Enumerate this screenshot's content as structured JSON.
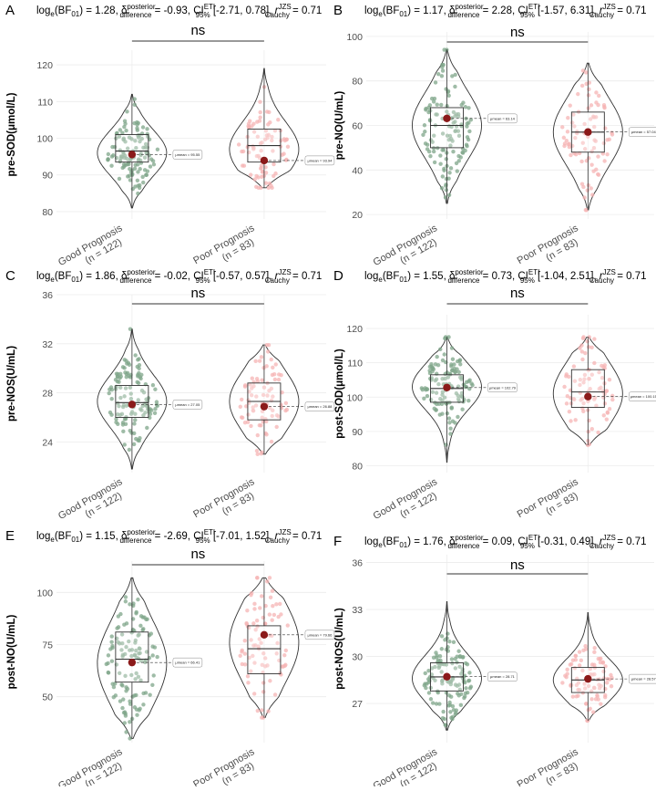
{
  "figure": {
    "colors": {
      "good": "#7fa58a",
      "poor": "#f6b4b4",
      "mean": "#8b1a1a",
      "grid": "#ececec"
    }
  },
  "chart_data": [
    {
      "letter": "A",
      "type": "violin",
      "title_parts": {
        "bf": "1.28",
        "diff": "-0.93",
        "ci": "[-2.71, 0.78]",
        "r": "0.71"
      },
      "ylabel": "pre-SOD(μmol/L)",
      "ylim": [
        78,
        124
      ],
      "yticks": [
        80,
        90,
        100,
        110,
        120
      ],
      "categories": [
        "Good Prognosis",
        "Poor Prognosis"
      ],
      "ns_counts": [
        "(n = 122)",
        "(n = 83)"
      ],
      "ns_label": "ns",
      "groups": [
        {
          "name": "Good Prognosis",
          "n": 122,
          "min": 81,
          "max": 112,
          "q1": 93.5,
          "median": 96.5,
          "q3": 101,
          "mean": 95.55,
          "mean_label": "μmean = 95.55",
          "mode": 96
        },
        {
          "name": "Poor Prognosis",
          "n": 83,
          "min": 86.5,
          "max": 119,
          "q1": 93.5,
          "median": 98,
          "q3": 102.5,
          "mean": 93.94,
          "mean_label": "μmean = 93.94",
          "mode": 97
        }
      ]
    },
    {
      "letter": "B",
      "type": "violin",
      "title_parts": {
        "bf": "1.17",
        "diff": "2.28",
        "ci": "[-1.57, 6.31]",
        "r": "0.71"
      },
      "ylabel": "pre-NO(U/mL)",
      "ylim": [
        18,
        102
      ],
      "yticks": [
        20,
        40,
        60,
        80,
        100
      ],
      "categories": [
        "Good Prognosis",
        "Poor Prognosis"
      ],
      "ns_counts": [
        "(n = 122)",
        "(n = 83)"
      ],
      "ns_label": "ns",
      "groups": [
        {
          "name": "Good Prognosis",
          "n": 122,
          "min": 25,
          "max": 94,
          "q1": 50,
          "median": 60,
          "q3": 68,
          "mean": 63.14,
          "mean_label": "μmean = 63.14",
          "mode": 60
        },
        {
          "name": "Poor Prognosis",
          "n": 83,
          "min": 22,
          "max": 88,
          "q1": 48,
          "median": 57,
          "q3": 66,
          "mean": 57.04,
          "mean_label": "μmean = 57.04",
          "mode": 57
        }
      ]
    },
    {
      "letter": "C",
      "type": "violin",
      "title_parts": {
        "bf": "1.86",
        "diff": "-0.02",
        "ci": "[-0.57, 0.57]",
        "r": "0.71"
      },
      "ylabel": "pre-NOS(U/mL)",
      "ylim": [
        21.5,
        36
      ],
      "yticks": [
        24,
        28,
        32,
        36
      ],
      "categories": [
        "Good Prognosis",
        "Poor Prognosis"
      ],
      "ns_counts": [
        "(n = 122)",
        "(n = 83)"
      ],
      "ns_label": "ns",
      "groups": [
        {
          "name": "Good Prognosis",
          "n": 122,
          "min": 21.8,
          "max": 33.2,
          "q1": 26,
          "median": 27.2,
          "q3": 28.6,
          "mean": 27.05,
          "mean_label": "μmean = 27.05",
          "mode": 27.3
        },
        {
          "name": "Poor Prognosis",
          "n": 83,
          "min": 23,
          "max": 31.9,
          "q1": 25.8,
          "median": 27.3,
          "q3": 28.8,
          "mean": 26.88,
          "mean_label": "μmean = 26.88",
          "mode": 27.3
        }
      ]
    },
    {
      "letter": "D",
      "type": "violin",
      "title_parts": {
        "bf": "1.55",
        "diff": "0.73",
        "ci": "[-1.04, 2.51]",
        "r": "0.71"
      },
      "ylabel": "post-SOD(μmol/L)",
      "ylim": [
        78,
        124
      ],
      "yticks": [
        80,
        90,
        100,
        110,
        120
      ],
      "categories": [
        "Good Prognosis",
        "Poor Prognosis"
      ],
      "ns_counts": [
        "(n = 122)",
        "(n = 83)"
      ],
      "ns_label": "ns",
      "groups": [
        {
          "name": "Good Prognosis",
          "n": 122,
          "min": 81,
          "max": 117.5,
          "q1": 98.5,
          "median": 102.5,
          "q3": 106.5,
          "mean": 102.79,
          "mean_label": "μmean = 102.79",
          "mode": 103
        },
        {
          "name": "Poor Prognosis",
          "n": 83,
          "min": 86,
          "max": 117.5,
          "q1": 97,
          "median": 101.5,
          "q3": 108,
          "mean": 100.15,
          "mean_label": "μmean = 100.15",
          "mode": 101
        }
      ]
    },
    {
      "letter": "E",
      "type": "violin",
      "title_parts": {
        "bf": "1.15",
        "diff": "-2.69",
        "ci": "[-7.01, 1.52]",
        "r": "0.71"
      },
      "ylabel": "post-NO(U/mL)",
      "ylim": [
        28,
        115
      ],
      "yticks": [
        50,
        75,
        100
      ],
      "categories": [
        "Good Prognosis",
        "Poor Prognosis"
      ],
      "ns_counts": [
        "(n = 122)",
        "(n = 83)"
      ],
      "ns_label": "ns",
      "groups": [
        {
          "name": "Good Prognosis",
          "n": 122,
          "min": 30,
          "max": 107,
          "q1": 57,
          "median": 68,
          "q3": 81,
          "mean": 66.41,
          "mean_label": "μmean = 66.41",
          "mode": 66
        },
        {
          "name": "Poor Prognosis",
          "n": 83,
          "min": 40,
          "max": 107,
          "q1": 61,
          "median": 73,
          "q3": 84,
          "mean": 79.66,
          "mean_label": "μmean = 79.66",
          "mode": 76
        }
      ]
    },
    {
      "letter": "F",
      "type": "violin",
      "title_parts": {
        "bf": "1.76",
        "diff": "0.09",
        "ci": "[-0.31, 0.49]",
        "r": "0.71"
      },
      "ylabel": "post-NOS(U/mL)",
      "ylim": [
        24.5,
        36.5
      ],
      "yticks": [
        27,
        30,
        33,
        36
      ],
      "categories": [
        "Good Prognosis",
        "Poor Prognosis"
      ],
      "ns_counts": [
        "(n = 122)",
        "(n = 83)"
      ],
      "ns_label": "ns",
      "groups": [
        {
          "name": "Good Prognosis",
          "n": 122,
          "min": 25.3,
          "max": 33.5,
          "q1": 27.8,
          "median": 28.7,
          "q3": 29.6,
          "mean": 28.71,
          "mean_label": "μmean = 28.71",
          "mode": 28.6
        },
        {
          "name": "Poor Prognosis",
          "n": 83,
          "min": 25.9,
          "max": 32.8,
          "q1": 27.7,
          "median": 28.5,
          "q3": 29.3,
          "mean": 28.57,
          "mean_label": "μmean = 28.57",
          "mode": 28.5
        }
      ]
    }
  ]
}
